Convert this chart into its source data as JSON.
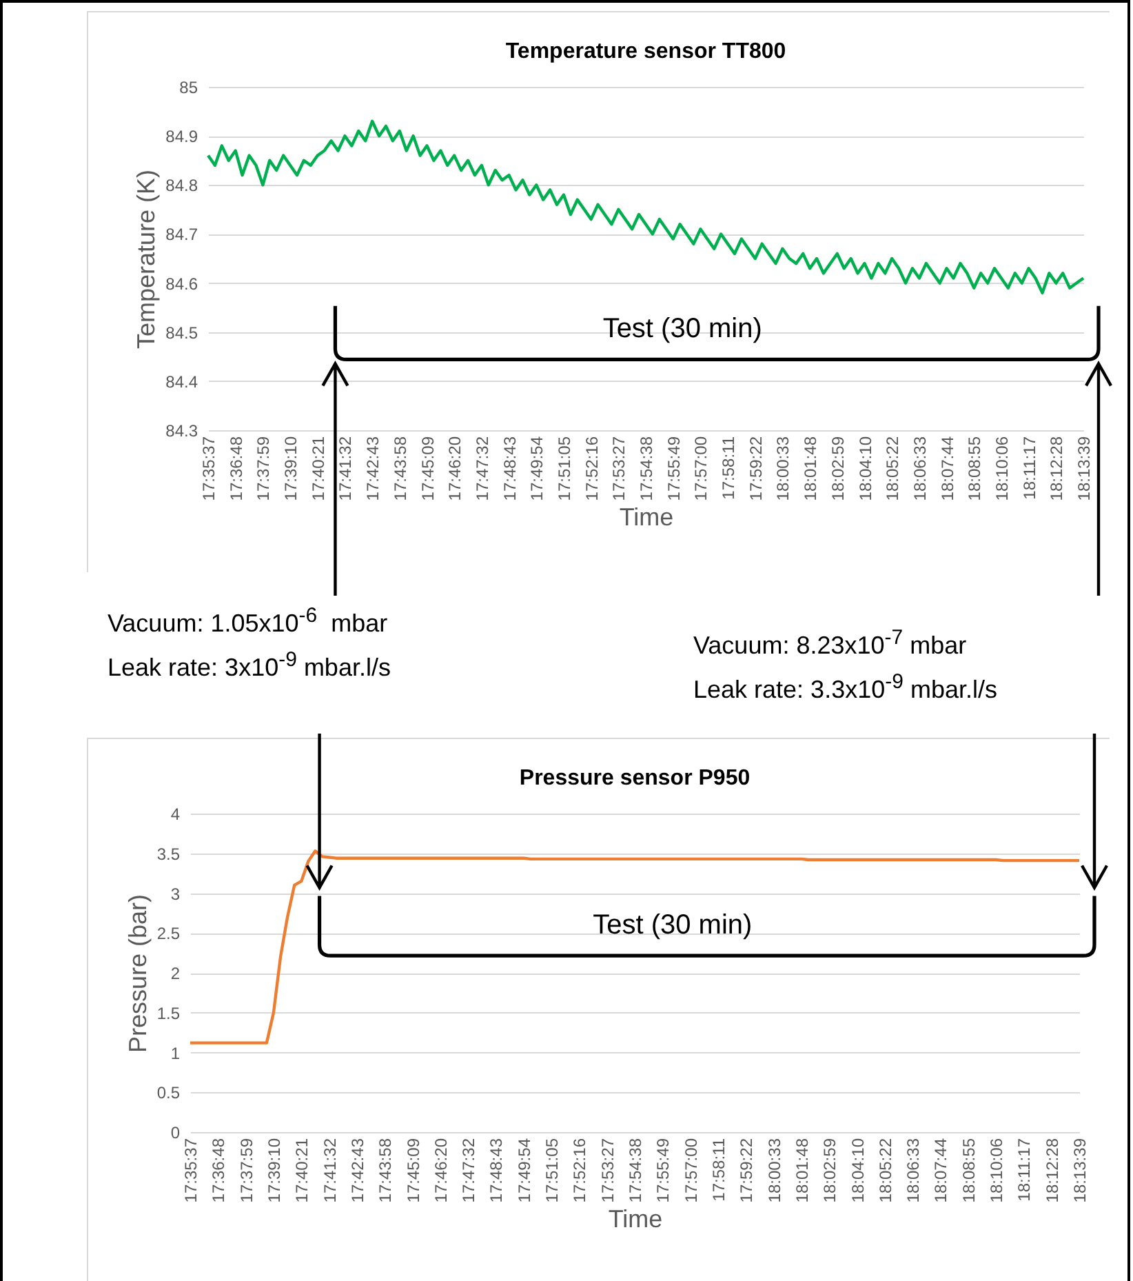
{
  "chart_data": [
    {
      "type": "line",
      "title": "Temperature sensor TT800",
      "xlabel": "Time",
      "ylabel": "Temperature (K)",
      "ylim": [
        84.3,
        85
      ],
      "yticks": [
        84.3,
        84.4,
        84.5,
        84.6,
        84.7,
        84.8,
        84.9,
        85
      ],
      "grid": "y",
      "categories": [
        "17:35:37",
        null,
        null,
        null,
        "17:36:48",
        null,
        null,
        null,
        "17:37:59",
        null,
        null,
        null,
        "17:39:10",
        null,
        null,
        null,
        "17:40:21",
        null,
        null,
        null,
        "17:41:32",
        null,
        null,
        null,
        "17:42:43",
        null,
        null,
        null,
        "17:43:58",
        null,
        null,
        null,
        "17:45:09",
        null,
        null,
        null,
        "17:46:20",
        null,
        null,
        null,
        "17:47:32",
        null,
        null,
        null,
        "17:48:43",
        null,
        null,
        null,
        "17:49:54",
        null,
        null,
        null,
        "17:51:05",
        null,
        null,
        null,
        "17:52:16",
        null,
        null,
        null,
        "17:53:27",
        null,
        null,
        null,
        "17:54:38",
        null,
        null,
        null,
        "17:55:49",
        null,
        null,
        null,
        "17:57:00",
        null,
        null,
        null,
        "17:58:11",
        null,
        null,
        null,
        "17:59:22",
        null,
        null,
        null,
        "18:00:33",
        null,
        null,
        null,
        "18:01:48",
        null,
        null,
        null,
        "18:02:59",
        null,
        null,
        null,
        "18:04:10",
        null,
        null,
        null,
        "18:05:22",
        null,
        null,
        null,
        "18:06:33",
        null,
        null,
        null,
        "18:07:44",
        null,
        null,
        null,
        "18:08:55",
        null,
        null,
        null,
        "18:10:06",
        null,
        null,
        null,
        "18:11:17",
        null,
        null,
        null,
        "18:12:28",
        null,
        null,
        null,
        "18:13:39"
      ],
      "series": [
        {
          "color": "#00b050",
          "values": [
            84.86,
            84.84,
            84.88,
            84.85,
            84.87,
            84.82,
            84.86,
            84.84,
            84.8,
            84.85,
            84.83,
            84.86,
            84.84,
            84.82,
            84.85,
            84.84,
            84.86,
            84.87,
            84.89,
            84.87,
            84.9,
            84.88,
            84.91,
            84.89,
            84.93,
            84.9,
            84.92,
            84.89,
            84.91,
            84.87,
            84.9,
            84.86,
            84.88,
            84.85,
            84.87,
            84.84,
            84.86,
            84.83,
            84.85,
            84.82,
            84.84,
            84.8,
            84.83,
            84.81,
            84.82,
            84.79,
            84.81,
            84.78,
            84.8,
            84.77,
            84.79,
            84.76,
            84.78,
            84.74,
            84.77,
            84.75,
            84.73,
            84.76,
            84.74,
            84.72,
            84.75,
            84.73,
            84.71,
            84.74,
            84.72,
            84.7,
            84.73,
            84.71,
            84.69,
            84.72,
            84.7,
            84.68,
            84.71,
            84.69,
            84.67,
            84.7,
            84.68,
            84.66,
            84.69,
            84.67,
            84.65,
            84.68,
            84.66,
            84.64,
            84.67,
            84.65,
            84.64,
            84.66,
            84.63,
            84.65,
            84.62,
            84.64,
            84.66,
            84.63,
            84.65,
            84.62,
            84.64,
            84.61,
            84.64,
            84.62,
            84.65,
            84.63,
            84.6,
            84.63,
            84.61,
            84.64,
            84.62,
            84.6,
            84.63,
            84.61,
            84.64,
            84.62,
            84.59,
            84.62,
            84.6,
            84.63,
            84.61,
            84.59,
            84.62,
            84.6,
            84.63,
            84.61,
            84.58,
            84.62,
            84.6,
            84.62,
            84.59,
            84.6,
            84.61
          ]
        }
      ],
      "annotations": [
        "Test (30 min)"
      ]
    },
    {
      "type": "other",
      "annotations": [
        "Vacuum: 1.05x10$^{-6}$  mbar",
        "Leak rate: 3x10$^{-9}$ mbar.l/s",
        "Vacuum: 8.23x10$^{-7}$ mbar",
        "Leak rate: 3.3x10$^{-9}$ mbar.l/s"
      ]
    },
    {
      "type": "line",
      "title": "Pressure sensor P950",
      "xlabel": "Time",
      "ylabel": "Pressure (bar)",
      "ylim": [
        0,
        4
      ],
      "yticks": [
        0,
        0.5,
        1,
        1.5,
        2,
        2.5,
        3,
        3.5,
        4
      ],
      "grid": "y",
      "categories": [
        "17:35:37",
        null,
        null,
        null,
        "17:36:48",
        null,
        null,
        null,
        "17:37:59",
        null,
        null,
        null,
        "17:39:10",
        null,
        null,
        null,
        "17:40:21",
        null,
        null,
        null,
        "17:41:32",
        null,
        null,
        null,
        "17:42:43",
        null,
        null,
        null,
        "17:43:58",
        null,
        null,
        null,
        "17:45:09",
        null,
        null,
        null,
        "17:46:20",
        null,
        null,
        null,
        "17:47:32",
        null,
        null,
        null,
        "17:48:43",
        null,
        null,
        null,
        "17:49:54",
        null,
        null,
        null,
        "17:51:05",
        null,
        null,
        null,
        "17:52:16",
        null,
        null,
        null,
        "17:53:27",
        null,
        null,
        null,
        "17:54:38",
        null,
        null,
        null,
        "17:55:49",
        null,
        null,
        null,
        "17:57:00",
        null,
        null,
        null,
        "17:58:11",
        null,
        null,
        null,
        "17:59:22",
        null,
        null,
        null,
        "18:00:33",
        null,
        null,
        null,
        "18:01:48",
        null,
        null,
        null,
        "18:02:59",
        null,
        null,
        null,
        "18:04:10",
        null,
        null,
        null,
        "18:05:22",
        null,
        null,
        null,
        "18:06:33",
        null,
        null,
        null,
        "18:07:44",
        null,
        null,
        null,
        "18:08:55",
        null,
        null,
        null,
        "18:10:06",
        null,
        null,
        null,
        "18:11:17",
        null,
        null,
        null,
        "18:12:28",
        null,
        null,
        null,
        "18:13:39"
      ],
      "series": [
        {
          "color": "#ed7d31",
          "values": [
            1.12,
            1.12,
            1.12,
            1.12,
            1.12,
            1.12,
            1.12,
            1.12,
            1.12,
            1.12,
            1.12,
            1.12,
            1.5,
            2.2,
            2.7,
            3.1,
            3.15,
            3.4,
            3.53,
            3.46,
            3.45,
            3.44,
            3.44,
            3.44,
            3.44,
            3.44,
            3.44,
            3.44,
            3.44,
            3.44,
            3.44,
            3.44,
            3.44,
            3.44,
            3.44,
            3.44,
            3.44,
            3.44,
            3.44,
            3.44,
            3.44,
            3.44,
            3.44,
            3.44,
            3.44,
            3.44,
            3.44,
            3.44,
            3.44,
            3.43,
            3.43,
            3.43,
            3.43,
            3.43,
            3.43,
            3.43,
            3.43,
            3.43,
            3.43,
            3.43,
            3.43,
            3.43,
            3.43,
            3.43,
            3.43,
            3.43,
            3.43,
            3.43,
            3.43,
            3.43,
            3.43,
            3.43,
            3.43,
            3.43,
            3.43,
            3.43,
            3.43,
            3.43,
            3.43,
            3.43,
            3.43,
            3.43,
            3.43,
            3.43,
            3.43,
            3.43,
            3.43,
            3.43,
            3.43,
            3.42,
            3.42,
            3.42,
            3.42,
            3.42,
            3.42,
            3.42,
            3.42,
            3.42,
            3.42,
            3.42,
            3.42,
            3.42,
            3.42,
            3.42,
            3.42,
            3.42,
            3.42,
            3.42,
            3.42,
            3.42,
            3.42,
            3.42,
            3.42,
            3.42,
            3.42,
            3.42,
            3.42,
            3.41,
            3.41,
            3.41,
            3.41,
            3.41,
            3.41,
            3.41,
            3.41,
            3.41,
            3.41,
            3.41,
            3.41
          ]
        }
      ],
      "annotations": [
        "Test (30 min)"
      ]
    }
  ]
}
